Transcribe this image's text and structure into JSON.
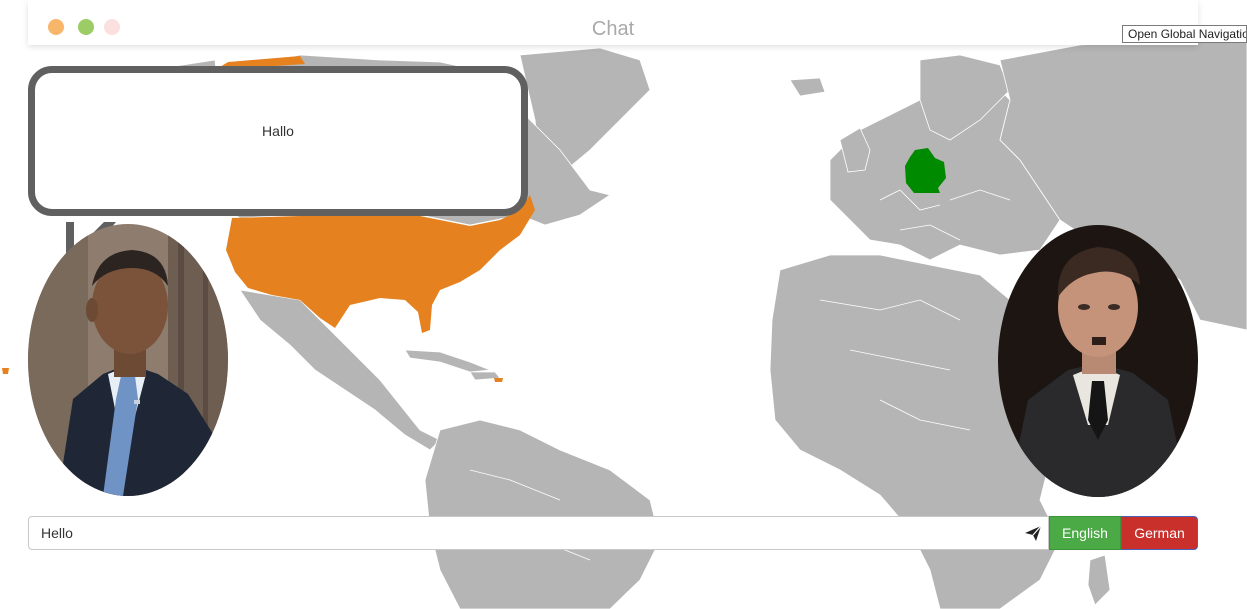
{
  "window": {
    "title": "Chat",
    "traffic_lights": [
      "#f8b66a",
      "#9ccc65",
      "#fbe0e0"
    ]
  },
  "tooltip": {
    "text": "Open Global Navigatio"
  },
  "speech_bubble": {
    "text": "Hallo"
  },
  "map": {
    "land_color": "#b5b5b5",
    "highlight_colors": {
      "united_states": "#e5821f",
      "germany": "#008a00"
    }
  },
  "chat": {
    "input_value": "Hello",
    "send_icon": "send-icon",
    "languages": [
      {
        "label": "English",
        "color": "#4caa46"
      },
      {
        "label": "German",
        "color": "#c9302c"
      }
    ]
  }
}
